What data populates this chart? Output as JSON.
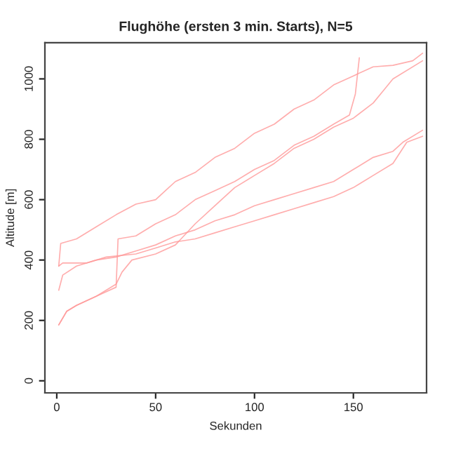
{
  "chart_data": {
    "type": "line",
    "title": "Flughöhe (ersten 3 min. Starts), N=5",
    "xlabel": "Sekunden",
    "ylabel": "Altitude [m]",
    "xlim": [
      -6,
      187
    ],
    "ylim": [
      -40,
      1120
    ],
    "xticks": [
      0,
      50,
      100,
      150
    ],
    "yticks": [
      0,
      200,
      400,
      600,
      800,
      1000
    ],
    "grid": false,
    "series": [
      {
        "color": "#ff9999",
        "x": [
          1,
          2,
          10,
          20,
          30,
          40,
          50,
          55,
          60,
          70,
          80,
          90,
          100,
          110,
          120,
          130,
          140,
          150,
          160,
          170,
          180,
          185
        ],
        "values": [
          380,
          455,
          470,
          510,
          550,
          585,
          600,
          630,
          660,
          690,
          740,
          770,
          820,
          850,
          900,
          930,
          980,
          1010,
          1040,
          1045,
          1060,
          1085
        ]
      },
      {
        "color": "#ff9999",
        "x": [
          1,
          3,
          10,
          20,
          30,
          40,
          50,
          60,
          70,
          80,
          90,
          100,
          110,
          120,
          130,
          140,
          150,
          160,
          170,
          175,
          185
        ],
        "values": [
          300,
          350,
          380,
          400,
          410,
          430,
          450,
          480,
          500,
          530,
          550,
          580,
          600,
          620,
          640,
          660,
          700,
          740,
          760,
          790,
          830
        ]
      },
      {
        "color": "#ff9999",
        "x": [
          1,
          5,
          10,
          20,
          30,
          31,
          40,
          50,
          60,
          70,
          80,
          90,
          100,
          110,
          120,
          130,
          140,
          148,
          151,
          153
        ],
        "values": [
          185,
          230,
          250,
          280,
          310,
          470,
          480,
          520,
          550,
          600,
          630,
          660,
          700,
          730,
          780,
          810,
          850,
          880,
          950,
          1070
        ]
      },
      {
        "color": "#ff9999",
        "x": [
          1,
          3,
          15,
          25,
          40,
          50,
          60,
          70,
          80,
          90,
          100,
          110,
          120,
          130,
          140,
          150,
          160,
          170,
          177,
          185
        ],
        "values": [
          380,
          390,
          390,
          410,
          420,
          440,
          460,
          470,
          490,
          510,
          530,
          550,
          570,
          590,
          610,
          640,
          680,
          720,
          790,
          810
        ]
      },
      {
        "color": "#ff9999",
        "x": [
          1,
          5,
          10,
          20,
          30,
          33,
          38,
          50,
          60,
          70,
          80,
          90,
          100,
          110,
          120,
          130,
          140,
          150,
          160,
          165,
          170,
          185
        ],
        "values": [
          185,
          230,
          250,
          280,
          320,
          360,
          400,
          420,
          450,
          520,
          580,
          640,
          680,
          720,
          770,
          800,
          840,
          870,
          920,
          960,
          1000,
          1060
        ]
      }
    ]
  }
}
